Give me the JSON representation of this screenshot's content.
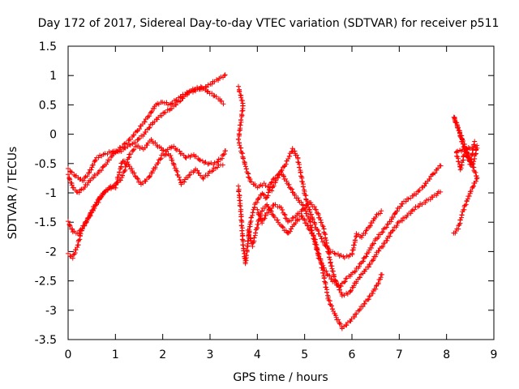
{
  "chart_data": {
    "type": "scatter",
    "title": "Day 172 of 2017, Sidereal Day-to-day VTEC variation (SDTVAR) for receiver p511",
    "xlabel": "GPS time / hours",
    "ylabel": "SDTVAR / TECUs",
    "xlim": [
      0,
      9
    ],
    "ylim": [
      -3.5,
      1.5
    ],
    "xticks": [
      0,
      1,
      2,
      3,
      4,
      5,
      6,
      7,
      8,
      9
    ],
    "xtick_labels": [
      "0",
      "1",
      "2",
      "3",
      "4",
      "5",
      "6",
      "7",
      "8",
      "9"
    ],
    "yticks": [
      1.5,
      1,
      0.5,
      0,
      -0.5,
      -1,
      -1.5,
      -2,
      -2.5,
      -3,
      -3.5
    ],
    "ytick_labels": [
      "1.5",
      "1",
      "0.5",
      "0",
      "-0.5",
      "-1",
      "-1.5",
      "-2",
      "-2.5",
      "-3",
      "-3.5"
    ],
    "grid": false,
    "marker": "+",
    "color": "#ff0000",
    "series": [
      {
        "name": "s1",
        "points": [
          [
            0,
            -0.6
          ],
          [
            0.15,
            -0.7
          ],
          [
            0.3,
            -0.8
          ],
          [
            0.45,
            -0.65
          ],
          [
            0.6,
            -0.4
          ],
          [
            0.75,
            -0.35
          ],
          [
            0.9,
            -0.3
          ],
          [
            1.0,
            -0.3
          ],
          [
            1.15,
            -0.2
          ],
          [
            1.3,
            -0.1
          ],
          [
            1.5,
            0.1
          ],
          [
            1.7,
            0.3
          ],
          [
            1.85,
            0.5
          ],
          [
            2.0,
            0.55
          ],
          [
            2.15,
            0.5
          ],
          [
            2.3,
            0.6
          ],
          [
            2.5,
            0.7
          ],
          [
            2.7,
            0.75
          ],
          [
            2.9,
            0.8
          ],
          [
            3.1,
            0.9
          ],
          [
            3.3,
            1.0
          ],
          [
            3.35,
            1.05
          ]
        ]
      },
      {
        "name": "s2",
        "points": [
          [
            0,
            -0.7
          ],
          [
            0.1,
            -0.9
          ],
          [
            0.2,
            -1.0
          ],
          [
            0.35,
            -0.9
          ],
          [
            0.5,
            -0.75
          ],
          [
            0.65,
            -0.65
          ],
          [
            0.8,
            -0.5
          ],
          [
            0.95,
            -0.35
          ],
          [
            1.0,
            -0.3
          ],
          [
            1.1,
            -0.3
          ],
          [
            1.25,
            -0.2
          ],
          [
            1.4,
            -0.15
          ],
          [
            1.6,
            0.0
          ],
          [
            1.8,
            0.2
          ],
          [
            2.0,
            0.35
          ],
          [
            2.2,
            0.45
          ],
          [
            2.4,
            0.6
          ],
          [
            2.6,
            0.75
          ],
          [
            2.8,
            0.8
          ],
          [
            3.0,
            0.7
          ],
          [
            3.2,
            0.6
          ],
          [
            3.3,
            0.5
          ]
        ]
      },
      {
        "name": "s3",
        "points": [
          [
            0,
            -1.5
          ],
          [
            0.1,
            -1.65
          ],
          [
            0.2,
            -1.7
          ],
          [
            0.35,
            -1.55
          ],
          [
            0.5,
            -1.3
          ],
          [
            0.65,
            -1.1
          ],
          [
            0.8,
            -0.95
          ],
          [
            0.95,
            -0.9
          ],
          [
            1.0,
            -0.85
          ],
          [
            1.1,
            -0.8
          ],
          [
            1.2,
            -0.6
          ],
          [
            1.3,
            -0.35
          ],
          [
            1.45,
            -0.2
          ],
          [
            1.6,
            -0.25
          ],
          [
            1.75,
            -0.1
          ],
          [
            1.9,
            -0.2
          ],
          [
            2.05,
            -0.3
          ],
          [
            2.2,
            -0.2
          ],
          [
            2.35,
            -0.3
          ],
          [
            2.5,
            -0.4
          ],
          [
            2.65,
            -0.35
          ],
          [
            2.8,
            -0.45
          ],
          [
            2.95,
            -0.5
          ],
          [
            3.1,
            -0.5
          ],
          [
            3.25,
            -0.4
          ],
          [
            3.35,
            -0.25
          ]
        ]
      },
      {
        "name": "s4",
        "points": [
          [
            0,
            -2.05
          ],
          [
            0.1,
            -2.1
          ],
          [
            0.2,
            -1.9
          ],
          [
            0.3,
            -1.6
          ],
          [
            0.45,
            -1.4
          ],
          [
            0.6,
            -1.2
          ],
          [
            0.75,
            -1.0
          ],
          [
            0.9,
            -0.9
          ],
          [
            1.0,
            -0.9
          ],
          [
            1.05,
            -0.75
          ],
          [
            1.15,
            -0.45
          ],
          [
            1.3,
            -0.55
          ],
          [
            1.45,
            -0.75
          ],
          [
            1.55,
            -0.85
          ],
          [
            1.7,
            -0.75
          ],
          [
            1.85,
            -0.55
          ],
          [
            2.0,
            -0.35
          ],
          [
            2.15,
            -0.35
          ],
          [
            2.3,
            -0.65
          ],
          [
            2.4,
            -0.85
          ],
          [
            2.55,
            -0.7
          ],
          [
            2.7,
            -0.6
          ],
          [
            2.85,
            -0.75
          ],
          [
            3.0,
            -0.65
          ],
          [
            3.15,
            -0.55
          ],
          [
            3.3,
            -0.5
          ]
        ]
      },
      {
        "name": "s5",
        "points": [
          [
            3.6,
            0.8
          ],
          [
            3.7,
            0.5
          ],
          [
            3.6,
            -0.1
          ],
          [
            3.7,
            -0.4
          ],
          [
            3.75,
            -0.55
          ],
          [
            3.85,
            -0.8
          ],
          [
            4.0,
            -0.9
          ],
          [
            4.15,
            -0.85
          ],
          [
            4.3,
            -0.95
          ],
          [
            4.45,
            -0.7
          ],
          [
            4.6,
            -0.5
          ],
          [
            4.75,
            -0.25
          ],
          [
            4.85,
            -0.4
          ],
          [
            5.0,
            -1.0
          ],
          [
            5.1,
            -1.3
          ],
          [
            5.25,
            -1.6
          ],
          [
            5.4,
            -1.85
          ],
          [
            5.55,
            -2.0
          ],
          [
            5.7,
            -2.05
          ],
          [
            5.85,
            -2.1
          ],
          [
            6.0,
            -2.05
          ],
          [
            6.1,
            -1.7
          ],
          [
            6.2,
            -1.75
          ],
          [
            6.35,
            -1.6
          ],
          [
            6.5,
            -1.4
          ],
          [
            6.65,
            -1.3
          ]
        ]
      },
      {
        "name": "s6",
        "points": [
          [
            3.6,
            -0.9
          ],
          [
            3.65,
            -1.3
          ],
          [
            3.7,
            -1.9
          ],
          [
            3.75,
            -2.2
          ],
          [
            3.85,
            -1.5
          ],
          [
            3.95,
            -1.2
          ],
          [
            4.1,
            -1.0
          ],
          [
            4.2,
            -1.1
          ],
          [
            4.3,
            -0.8
          ],
          [
            4.5,
            -0.65
          ],
          [
            4.65,
            -0.85
          ],
          [
            4.8,
            -1.05
          ],
          [
            4.95,
            -1.2
          ],
          [
            5.1,
            -1.45
          ],
          [
            5.2,
            -1.8
          ],
          [
            5.3,
            -2.1
          ],
          [
            5.45,
            -2.35
          ],
          [
            5.6,
            -2.5
          ],
          [
            5.75,
            -2.6
          ],
          [
            5.9,
            -2.45
          ],
          [
            6.05,
            -2.35
          ],
          [
            6.2,
            -2.2
          ],
          [
            6.35,
            -2.0
          ],
          [
            6.5,
            -1.8
          ],
          [
            6.65,
            -1.65
          ],
          [
            6.8,
            -1.5
          ],
          [
            6.95,
            -1.3
          ],
          [
            7.1,
            -1.15
          ],
          [
            7.3,
            -1.05
          ],
          [
            7.5,
            -0.9
          ],
          [
            7.7,
            -0.7
          ],
          [
            7.9,
            -0.5
          ]
        ]
      },
      {
        "name": "s7",
        "points": [
          [
            4.0,
            -1.3
          ],
          [
            4.1,
            -1.5
          ],
          [
            4.2,
            -1.35
          ],
          [
            4.35,
            -1.2
          ],
          [
            4.5,
            -1.25
          ],
          [
            4.65,
            -1.5
          ],
          [
            4.8,
            -1.4
          ],
          [
            4.95,
            -1.3
          ],
          [
            5.1,
            -1.15
          ],
          [
            5.25,
            -1.3
          ],
          [
            5.4,
            -1.6
          ],
          [
            5.55,
            -2.2
          ],
          [
            5.65,
            -2.5
          ],
          [
            5.8,
            -2.75
          ],
          [
            5.95,
            -2.7
          ],
          [
            6.1,
            -2.5
          ],
          [
            6.25,
            -2.35
          ],
          [
            6.4,
            -2.2
          ],
          [
            6.55,
            -2.0
          ],
          [
            6.7,
            -1.85
          ],
          [
            6.85,
            -1.65
          ],
          [
            7.0,
            -1.5
          ],
          [
            7.15,
            -1.4
          ],
          [
            7.35,
            -1.25
          ],
          [
            7.55,
            -1.15
          ],
          [
            7.75,
            -1.05
          ],
          [
            7.9,
            -0.95
          ]
        ]
      },
      {
        "name": "s8",
        "points": [
          [
            3.8,
            -1.65
          ],
          [
            3.9,
            -1.9
          ],
          [
            4.0,
            -1.55
          ],
          [
            4.1,
            -1.3
          ],
          [
            4.2,
            -1.2
          ],
          [
            4.35,
            -1.4
          ],
          [
            4.5,
            -1.55
          ],
          [
            4.65,
            -1.7
          ],
          [
            4.8,
            -1.5
          ],
          [
            4.95,
            -1.4
          ],
          [
            5.05,
            -1.55
          ],
          [
            5.2,
            -1.75
          ],
          [
            5.35,
            -2.2
          ],
          [
            5.5,
            -2.8
          ],
          [
            5.65,
            -3.1
          ],
          [
            5.8,
            -3.3
          ],
          [
            5.95,
            -3.2
          ],
          [
            6.1,
            -3.05
          ],
          [
            6.25,
            -2.9
          ],
          [
            6.4,
            -2.75
          ],
          [
            6.55,
            -2.55
          ],
          [
            6.65,
            -2.35
          ]
        ]
      },
      {
        "name": "s9",
        "points": [
          [
            8.15,
            -1.7
          ],
          [
            8.25,
            -1.6
          ],
          [
            8.35,
            -1.3
          ],
          [
            8.45,
            -1.1
          ],
          [
            8.55,
            -0.9
          ],
          [
            8.65,
            -0.75
          ],
          [
            8.15,
            0.3
          ],
          [
            8.25,
            0.1
          ],
          [
            8.35,
            -0.2
          ],
          [
            8.45,
            -0.4
          ],
          [
            8.55,
            -0.55
          ],
          [
            8.65,
            -0.2
          ],
          [
            8.2,
            -0.3
          ],
          [
            8.3,
            -0.6
          ],
          [
            8.4,
            -0.25
          ],
          [
            8.5,
            -0.5
          ],
          [
            8.6,
            -0.1
          ]
        ]
      }
    ]
  }
}
